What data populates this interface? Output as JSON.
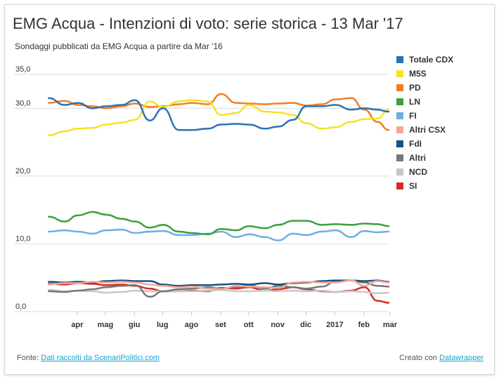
{
  "header": {
    "title": "EMG Acqua - Intenzioni di voto: serie storica - 13 Mar '17",
    "subtitle": "Sondaggi pubblicati da EMG Acqua a partire da Mar '16"
  },
  "footer": {
    "source_prefix": "Fonte: ",
    "source_link": "Dati raccolti da ScenariPolitici.com",
    "credit_prefix": "Creato con ",
    "credit_link": "Datawrapper"
  },
  "chart_data": {
    "type": "line",
    "title": "EMG Acqua - Intenzioni di voto: serie storica - 13 Mar '17",
    "subtitle": "Sondaggi pubblicati da EMG Acqua a partire da Mar '16",
    "xlabel": "",
    "ylabel": "",
    "ylim": [
      0,
      35
    ],
    "y_ticks": [
      "0,0",
      "10,0",
      "20,0",
      "30,0",
      "35,0"
    ],
    "x_ticks": [
      "apr",
      "mag",
      "giu",
      "lug",
      "ago",
      "set",
      "ott",
      "nov",
      "dic",
      "2017",
      "feb",
      "mar"
    ],
    "grid": "horizontal",
    "legend_position": "right",
    "x": [
      "2016-03-15",
      "2016-04-01",
      "2016-04-15",
      "2016-05-01",
      "2016-05-15",
      "2016-06-01",
      "2016-06-15",
      "2016-07-01",
      "2016-07-15",
      "2016-08-01",
      "2016-08-15",
      "2016-09-01",
      "2016-09-15",
      "2016-10-01",
      "2016-10-15",
      "2016-11-01",
      "2016-11-15",
      "2016-12-01",
      "2016-12-15",
      "2017-01-01",
      "2017-01-15",
      "2017-02-01",
      "2017-02-15",
      "2017-03-01",
      "2017-03-13"
    ],
    "series": [
      {
        "name": "Totale CDX",
        "color": "#2a73b5",
        "values": [
          31.5,
          30.5,
          30.8,
          30.0,
          30.3,
          30.5,
          31.2,
          28.2,
          30.0,
          26.8,
          26.8,
          27.0,
          27.6,
          27.7,
          27.6,
          27.0,
          27.3,
          28.3,
          30.3,
          30.3,
          30.5,
          29.8,
          30.0,
          29.8,
          29.5
        ]
      },
      {
        "name": "M5S",
        "color": "#f7e126",
        "values": [
          26.0,
          26.6,
          27.0,
          27.1,
          27.6,
          27.9,
          28.3,
          31.0,
          30.2,
          31.0,
          31.2,
          31.0,
          29.0,
          29.3,
          30.5,
          29.5,
          29.4,
          29.0,
          27.8,
          27.0,
          27.2,
          28.0,
          28.4,
          28.5,
          29.8
        ]
      },
      {
        "name": "PD",
        "color": "#f27d22",
        "values": [
          30.8,
          31.1,
          30.5,
          30.3,
          30.0,
          30.3,
          30.7,
          30.2,
          30.3,
          30.6,
          30.8,
          30.6,
          32.1,
          30.8,
          30.7,
          30.6,
          30.7,
          30.8,
          30.4,
          30.6,
          31.3,
          31.5,
          29.8,
          28.0,
          26.8
        ]
      },
      {
        "name": "LN",
        "color": "#3aa13d",
        "values": [
          14.0,
          13.3,
          14.2,
          14.7,
          14.3,
          13.7,
          13.3,
          12.4,
          12.8,
          11.8,
          11.6,
          11.4,
          12.2,
          12.0,
          12.6,
          12.3,
          12.8,
          13.4,
          13.4,
          12.8,
          12.9,
          12.8,
          13.0,
          12.9,
          12.6
        ]
      },
      {
        "name": "FI",
        "color": "#6caee6",
        "values": [
          11.8,
          12.0,
          11.8,
          11.5,
          12.0,
          12.1,
          11.6,
          11.8,
          11.9,
          11.3,
          11.3,
          11.5,
          11.8,
          11.0,
          11.4,
          11.0,
          10.5,
          11.5,
          11.3,
          11.8,
          12.0,
          11.0,
          11.9,
          11.7,
          11.8
        ]
      },
      {
        "name": "Altri CSX",
        "color": "#f5a891",
        "values": [
          4.0,
          4.2,
          4.2,
          4.4,
          4.3,
          4.4,
          4.3,
          4.0,
          3.8,
          3.6,
          3.7,
          3.4,
          3.3,
          3.8,
          3.7,
          3.6,
          3.5,
          4.3,
          4.4,
          4.3,
          4.3,
          4.6,
          3.8,
          4.5,
          4.3
        ]
      },
      {
        "name": "FdI",
        "color": "#175087",
        "values": [
          4.4,
          4.3,
          4.4,
          4.3,
          4.5,
          4.6,
          4.5,
          4.5,
          4.0,
          3.8,
          3.9,
          3.9,
          4.0,
          4.1,
          4.0,
          4.2,
          4.0,
          4.2,
          4.3,
          4.5,
          4.6,
          4.6,
          4.5,
          4.6,
          4.4
        ]
      },
      {
        "name": "Altri",
        "color": "#777777",
        "values": [
          3.0,
          2.9,
          3.1,
          3.3,
          3.6,
          3.8,
          3.9,
          2.2,
          3.0,
          3.3,
          3.4,
          3.6,
          3.4,
          3.6,
          3.9,
          3.4,
          3.8,
          3.6,
          3.4,
          3.7,
          4.4,
          4.6,
          4.3,
          3.8,
          3.7
        ]
      },
      {
        "name": "NCD",
        "color": "#c7c7c7",
        "values": [
          3.2,
          3.0,
          3.1,
          3.0,
          2.8,
          2.9,
          3.1,
          3.0,
          3.0,
          3.0,
          3.0,
          3.1,
          3.2,
          3.0,
          3.0,
          3.1,
          3.0,
          3.1,
          3.0,
          3.1,
          2.9,
          3.0,
          2.9,
          2.7,
          2.8
        ]
      },
      {
        "name": "SI",
        "color": "#d62b2b",
        "values": [
          4.1,
          4.0,
          4.2,
          4.1,
          3.9,
          4.0,
          3.8,
          3.4,
          3.0,
          3.0,
          3.1,
          3.0,
          3.5,
          3.4,
          3.6,
          3.1,
          3.3,
          3.6,
          3.3,
          3.0,
          2.9,
          3.1,
          3.6,
          1.6,
          1.3
        ]
      }
    ]
  }
}
